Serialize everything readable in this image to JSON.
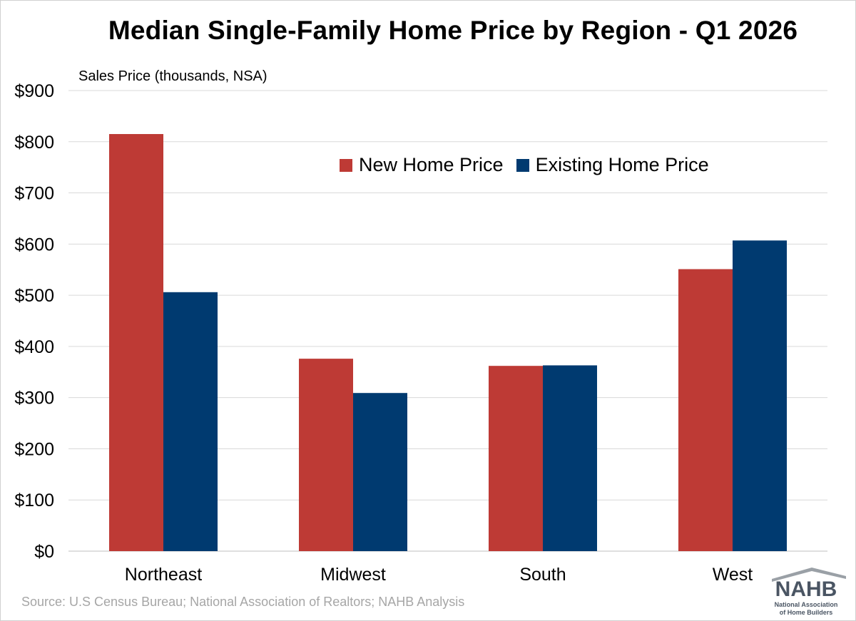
{
  "chart_data": {
    "type": "bar",
    "title": "Median Single-Family Home Price by Region - Q1 2026",
    "ylabel": "Sales Price (thousands, NSA)",
    "xlabel": "",
    "categories": [
      "Northeast",
      "Midwest",
      "South",
      "West"
    ],
    "series": [
      {
        "name": "New Home Price",
        "values": [
          815,
          376,
          362,
          551
        ],
        "color": "#BE3A35"
      },
      {
        "name": "Existing Home Price",
        "values": [
          506,
          309,
          363,
          607
        ],
        "color": "#003A70"
      }
    ],
    "ylim": [
      0,
      900
    ],
    "ytick_step": 100,
    "ytick_labels": [
      "$0",
      "$100",
      "$200",
      "$300",
      "$400",
      "$500",
      "$600",
      "$700",
      "$800",
      "$900"
    ],
    "grid": true,
    "legend_position": "top-center"
  },
  "source": "Source: U.S Census Bureau; National Association of Realtors; NAHB Analysis",
  "logo": {
    "abbr": "NAHB",
    "line1": "National Association",
    "line2": "of Home Builders",
    "roof_color": "#9AA0A6",
    "text_color": "#4A5563",
    "accent_color": "#BE3A35"
  }
}
